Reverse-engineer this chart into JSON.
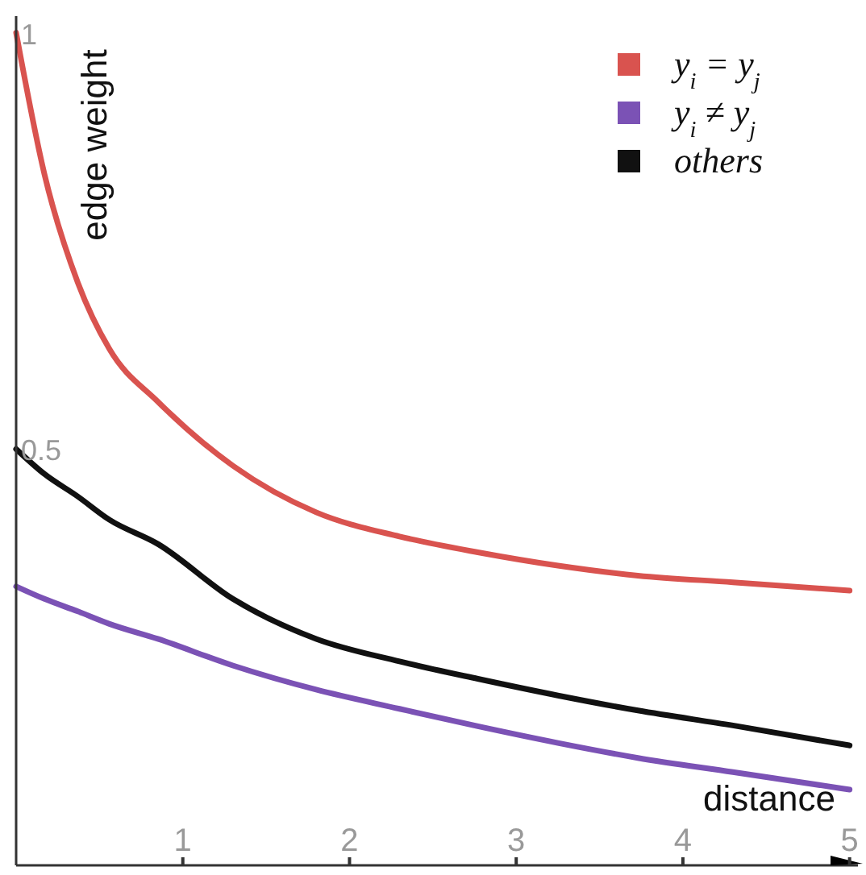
{
  "chart_data": {
    "type": "line",
    "xlabel": "distance",
    "ylabel": "edge weight",
    "x": [
      0,
      0.17,
      0.37,
      0.56,
      0.85,
      1.3,
      1.8,
      2.3,
      2.77,
      3.25,
      3.73,
      4.3,
      5
    ],
    "xlim": [
      0,
      5.05
    ],
    "xticks": [
      1,
      2,
      3,
      4,
      5
    ],
    "ylim": [
      0,
      1.02
    ],
    "yticks": [
      0.5,
      1
    ],
    "grid": false,
    "legend": "top right",
    "marker": "none",
    "line_style": "solid",
    "series": [
      {
        "name": "y$_{i}$ = y$_{j}$",
        "color": "#d9534f",
        "values": [
          1,
          0.83,
          0.7,
          0.62,
          0.557,
          0.48,
          0.424,
          0.395,
          0.376,
          0.36,
          0.348,
          0.34,
          0.33
        ]
      },
      {
        "name": "y$_{i}$ ≠ y$_{j}$",
        "color": "#7b52b5",
        "values": [
          0.335,
          0.32,
          0.305,
          0.29,
          0.272,
          0.24,
          0.211,
          0.188,
          0.167,
          0.147,
          0.129,
          0.112,
          0.091
        ]
      },
      {
        "name": "others",
        "color": "#111111",
        "values": [
          0.5,
          0.47,
          0.443,
          0.415,
          0.386,
          0.32,
          0.272,
          0.245,
          0.224,
          0.204,
          0.186,
          0.168,
          0.144
        ]
      }
    ]
  }
}
